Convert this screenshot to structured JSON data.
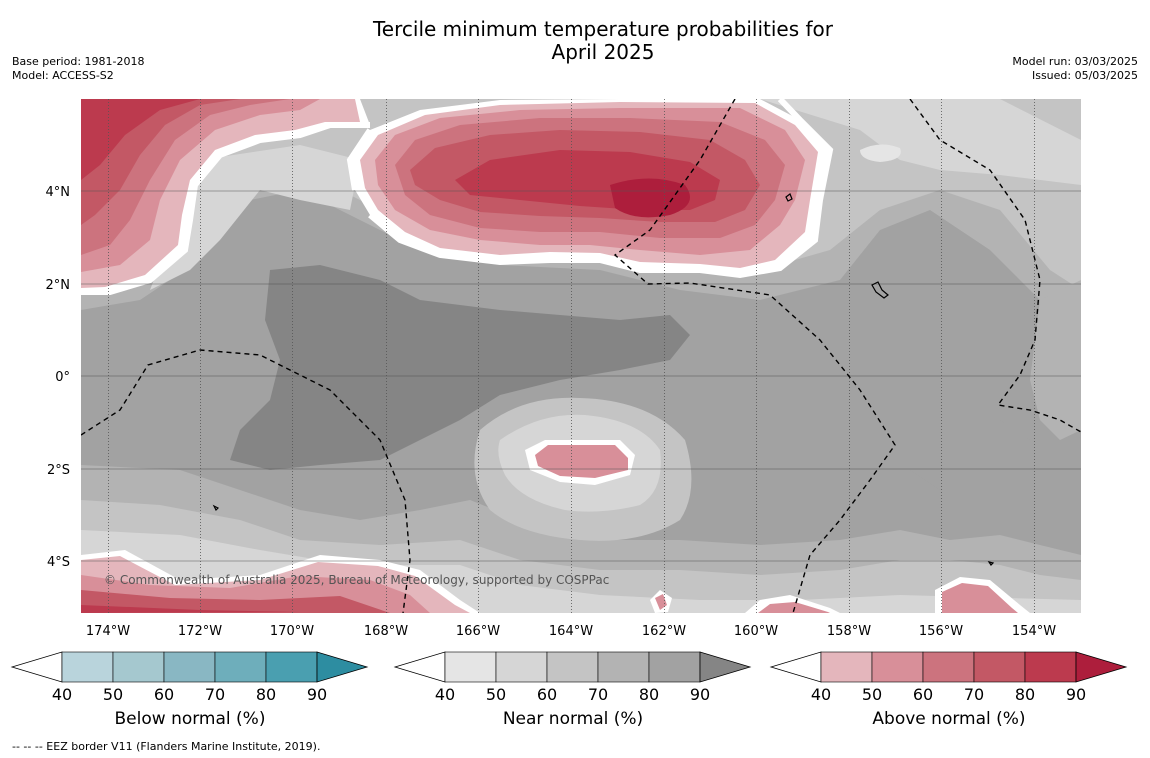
{
  "title_line1": "Tercile minimum temperature probabilities for",
  "title_line2": "April 2025",
  "base_period": "Base period: 1981-2018",
  "model": "Model: ACCESS-S2",
  "model_run": "Model run: 03/03/2025",
  "issued": "Issued: 05/03/2025",
  "copyright": "© Commonwealth of Australia 2025, Bureau of Meteorology, supported by COSPPac",
  "footnote": "-- -- -- EEZ border V11 (Flanders Marine Institute, 2019).",
  "map": {
    "lon_labels": [
      "174°W",
      "172°W",
      "170°W",
      "168°W",
      "166°W",
      "164°W",
      "162°W",
      "160°W",
      "158°W",
      "156°W",
      "154°W"
    ],
    "lat_labels": [
      "4°N",
      "2°N",
      "0°",
      "2°S",
      "4°S"
    ]
  },
  "colorbars": [
    {
      "name": "below",
      "title": "Below normal (%)",
      "ticks": [
        "40",
        "50",
        "60",
        "70",
        "80",
        "90"
      ],
      "colors": [
        "#ffffff",
        "#b9d4dc",
        "#a5c8cf",
        "#89b7c3",
        "#6eaebb",
        "#4a9fb0",
        "#2d8da1"
      ]
    },
    {
      "name": "near",
      "title": "Near normal (%)",
      "ticks": [
        "40",
        "50",
        "60",
        "70",
        "80",
        "90"
      ],
      "colors": [
        "#ffffff",
        "#e5e5e5",
        "#d6d6d6",
        "#c4c4c4",
        "#b3b3b3",
        "#a2a2a2",
        "#858585"
      ]
    },
    {
      "name": "above",
      "title": "Above normal (%)",
      "ticks": [
        "40",
        "50",
        "60",
        "70",
        "80",
        "90"
      ],
      "colors": [
        "#ffffff",
        "#e4b6bc",
        "#d88f99",
        "#cc737e",
        "#c35865",
        "#bc3a4e",
        "#ad1e3c"
      ]
    }
  ]
}
